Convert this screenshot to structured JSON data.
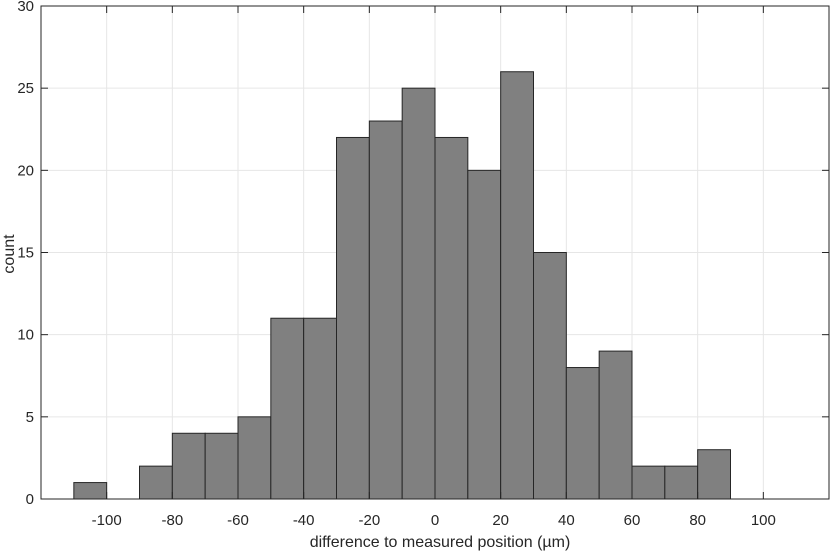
{
  "chart_data": {
    "type": "bar",
    "xlabel": "difference to measured position (µm)",
    "ylabel": "count",
    "xlim": [
      -120,
      120
    ],
    "ylim": [
      0,
      30
    ],
    "grid": true,
    "bin_width": 10,
    "bins": [
      {
        "start": -110,
        "end": -100,
        "count": 1
      },
      {
        "start": -100,
        "end": -90,
        "count": 0
      },
      {
        "start": -90,
        "end": -80,
        "count": 2
      },
      {
        "start": -80,
        "end": -70,
        "count": 4
      },
      {
        "start": -70,
        "end": -60,
        "count": 4
      },
      {
        "start": -60,
        "end": -50,
        "count": 5
      },
      {
        "start": -50,
        "end": -40,
        "count": 11
      },
      {
        "start": -40,
        "end": -30,
        "count": 11
      },
      {
        "start": -30,
        "end": -20,
        "count": 22
      },
      {
        "start": -20,
        "end": -10,
        "count": 23
      },
      {
        "start": -10,
        "end": 0,
        "count": 25
      },
      {
        "start": 0,
        "end": 10,
        "count": 22
      },
      {
        "start": 10,
        "end": 20,
        "count": 20
      },
      {
        "start": 20,
        "end": 30,
        "count": 26
      },
      {
        "start": 30,
        "end": 40,
        "count": 15
      },
      {
        "start": 40,
        "end": 50,
        "count": 8
      },
      {
        "start": 50,
        "end": 60,
        "count": 9
      },
      {
        "start": 60,
        "end": 70,
        "count": 2
      },
      {
        "start": 70,
        "end": 80,
        "count": 2
      },
      {
        "start": 80,
        "end": 90,
        "count": 3
      },
      {
        "start": 90,
        "end": 100,
        "count": 0
      },
      {
        "start": 100,
        "end": 110,
        "count": 0
      }
    ],
    "x_ticks": [
      -100,
      -80,
      -60,
      -40,
      -20,
      0,
      20,
      40,
      60,
      80,
      100
    ],
    "y_ticks": [
      0,
      5,
      10,
      15,
      20,
      25,
      30
    ],
    "bar_color": "#808080",
    "bar_edge_color": "#262626",
    "grid_color": "#e6e6e6",
    "axis_color": "#262626"
  }
}
